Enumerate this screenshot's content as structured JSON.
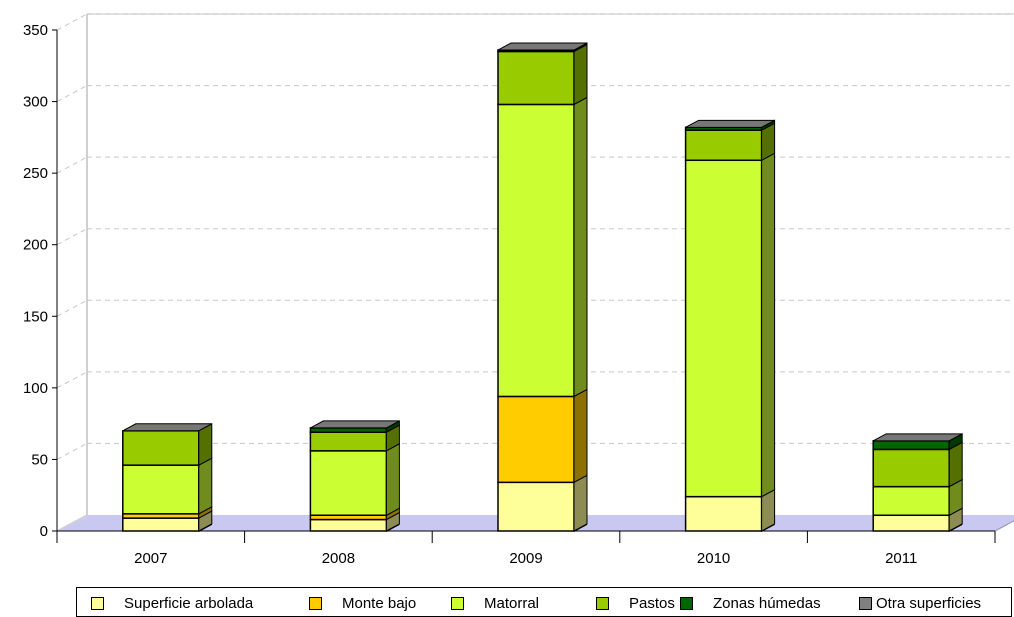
{
  "chart_data": {
    "type": "bar",
    "stacked": true,
    "categories": [
      "2007",
      "2008",
      "2009",
      "2010",
      "2011"
    ],
    "ylim": [
      0,
      350
    ],
    "yticks": [
      0,
      50,
      100,
      150,
      200,
      250,
      300,
      350
    ],
    "grid": true,
    "legend_position": "bottom",
    "series": [
      {
        "name": "Superficie arbolada",
        "color": "#ffff99",
        "values": [
          9,
          8,
          34,
          24,
          11
        ]
      },
      {
        "name": "Monte bajo",
        "color": "#ffcc00",
        "values": [
          3,
          3,
          60,
          0,
          0
        ]
      },
      {
        "name": "Matorral",
        "color": "#ccff33",
        "values": [
          34,
          45,
          204,
          235,
          20
        ]
      },
      {
        "name": "Pastos",
        "color": "#99cc00",
        "values": [
          24,
          13,
          37,
          21,
          26
        ]
      },
      {
        "name": "Zonas húmedas",
        "color": "#006600",
        "values": [
          0,
          3,
          1,
          2,
          6
        ]
      },
      {
        "name": "Otra superficies",
        "color": "#808080",
        "values": [
          0,
          0,
          0,
          0,
          0
        ]
      }
    ]
  }
}
